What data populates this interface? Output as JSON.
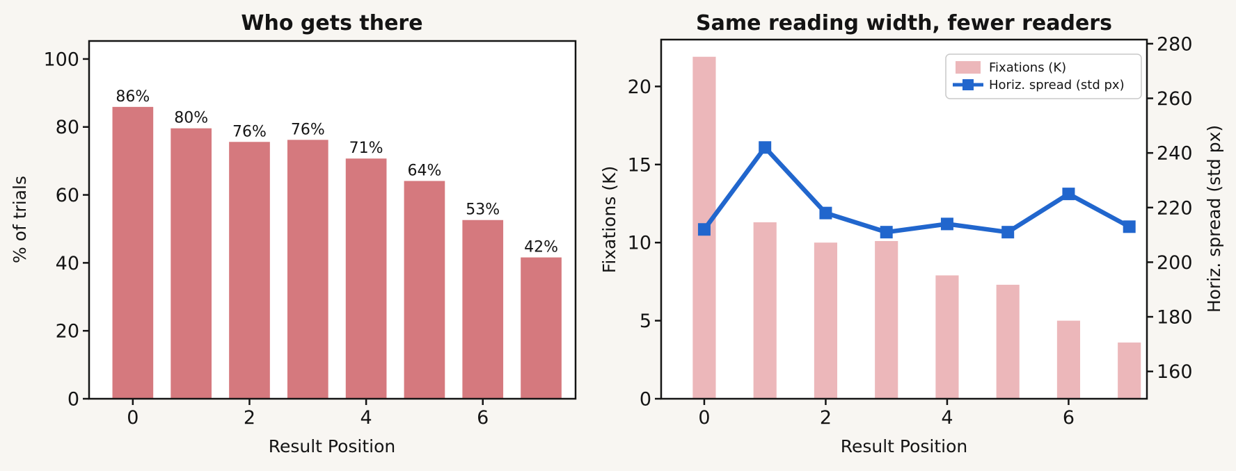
{
  "figure": {
    "background": "#f8f6f2",
    "axes_background": "#ffffff",
    "spine_color": "#141414",
    "text_color": "#141414"
  },
  "chart_data": [
    {
      "id": "who-gets-there",
      "type": "bar",
      "title": "Who gets there",
      "xlabel": "Result Position",
      "ylabel": "% of trials",
      "x": [
        0,
        1,
        2,
        3,
        4,
        5,
        6,
        7
      ],
      "values": [
        85.9,
        79.6,
        75.6,
        76.2,
        70.7,
        64.1,
        52.6,
        41.6
      ],
      "bar_labels": [
        "86%",
        "80%",
        "76%",
        "76%",
        "71%",
        "64%",
        "53%",
        "42%"
      ],
      "bar_color": "#d5797e",
      "bar_label_color": "#767676",
      "xticks": [
        0,
        2,
        4,
        6
      ],
      "yticks": [
        0,
        20,
        40,
        60,
        80,
        100
      ],
      "xlim": [
        -0.75,
        7.59
      ],
      "ylim": [
        0,
        105.3
      ],
      "bar_width": 0.7,
      "grid": false,
      "legend": null
    },
    {
      "id": "same-reading-width-fewer-readers",
      "type": "bar+line dual-axis",
      "title": "Same reading width, fewer readers",
      "xlabel": "Result Position",
      "ylabel_left": "Fixations (K)",
      "ylabel_right": "Horiz. spread (std px)",
      "ylabel_left_color": "#d4494f",
      "ylabel_right_color": "#2166cd",
      "x": [
        0,
        1,
        2,
        3,
        4,
        5,
        6,
        7
      ],
      "series": [
        {
          "name": "Fixations (K)",
          "type": "bar",
          "axis": "left",
          "color": "#ecb7ba",
          "values": [
            21.9,
            11.3,
            10.0,
            10.1,
            7.9,
            7.3,
            5.0,
            3.6
          ]
        },
        {
          "name": "Horiz. spread (std px)",
          "type": "line",
          "axis": "right",
          "color": "#2166cd",
          "marker": "square",
          "values": [
            212,
            242,
            218,
            211,
            214,
            211,
            225,
            213
          ]
        }
      ],
      "xticks": [
        0,
        2,
        4,
        6
      ],
      "yticks_left": [
        0,
        5,
        10,
        15,
        20
      ],
      "yticks_right": [
        160,
        180,
        200,
        220,
        240,
        260,
        280
      ],
      "xlim": [
        -0.71,
        7.29
      ],
      "ylim_left": [
        0,
        23
      ],
      "ylim_right": [
        150,
        281.5
      ],
      "bar_width": 0.38,
      "grid": false,
      "legend": {
        "position": "upper right",
        "entries": [
          "Fixations (K)",
          "Horiz. spread (std px)"
        ]
      }
    }
  ]
}
